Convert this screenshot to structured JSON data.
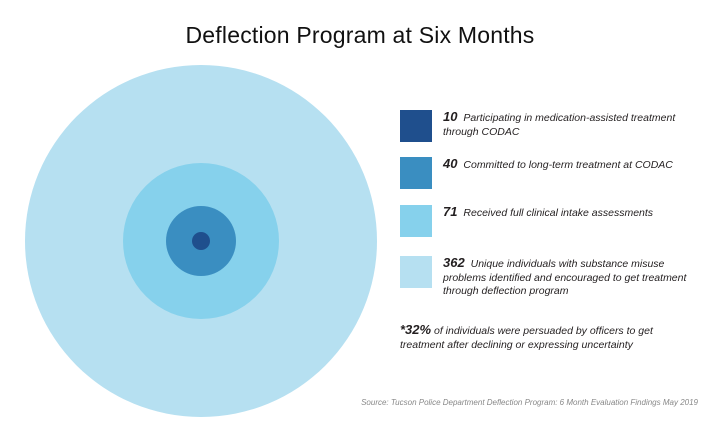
{
  "title": "Deflection Program at Six Months",
  "chart_data": {
    "type": "nested-circles",
    "title": "Deflection Program at Six Months",
    "items": [
      {
        "value": 362,
        "value_label": "362",
        "label": "Unique individuals with substance misuse problems identified and encouraged to get treatment through deflection program",
        "color": "#b6e0f1"
      },
      {
        "value": 71,
        "value_label": "71",
        "label": "Received full clinical intake assessments",
        "color": "#86d1ec"
      },
      {
        "value": 40,
        "value_label": "40",
        "label": "Committed to long-term treatment at CODAC",
        "color": "#3a8ec1"
      },
      {
        "value": 10,
        "value_label": "10",
        "label": "Participating in medication-assisted treatment through CODAC",
        "color": "#1f4f8d"
      }
    ],
    "legend_position": "right"
  },
  "note": {
    "value": "*32%",
    "text": "of individuals were persuaded by officers to get treatment after declining or expressing uncertainty"
  },
  "source": "Source: Tucson Police Department Deflection Program: 6 Month Evaluation Findings May 2019"
}
